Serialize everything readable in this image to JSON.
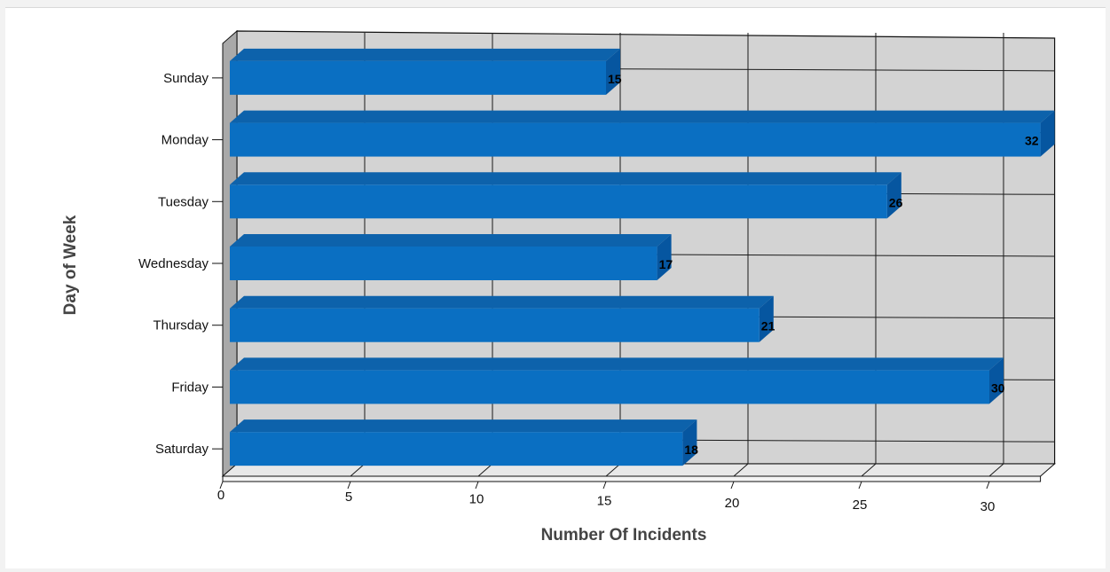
{
  "chart_data": {
    "type": "bar",
    "orientation": "horizontal",
    "three_d": true,
    "categories": [
      "Sunday",
      "Monday",
      "Tuesday",
      "Wednesday",
      "Thursday",
      "Friday",
      "Saturday"
    ],
    "values": [
      15,
      32,
      26,
      17,
      21,
      30,
      18
    ],
    "xlabel": "Number Of Incidents",
    "ylabel": "Day of Week",
    "xlim": [
      0,
      32
    ],
    "x_ticks": [
      0,
      5,
      10,
      15,
      20,
      25,
      30
    ],
    "grid": true,
    "data_labels": true,
    "colors": {
      "bar_front": "#0a6fc2",
      "bar_top": "#0d62ab",
      "bar_side": "#0656a0",
      "wall": "#d3d3d3",
      "gridline": "#1a1a1a"
    }
  }
}
